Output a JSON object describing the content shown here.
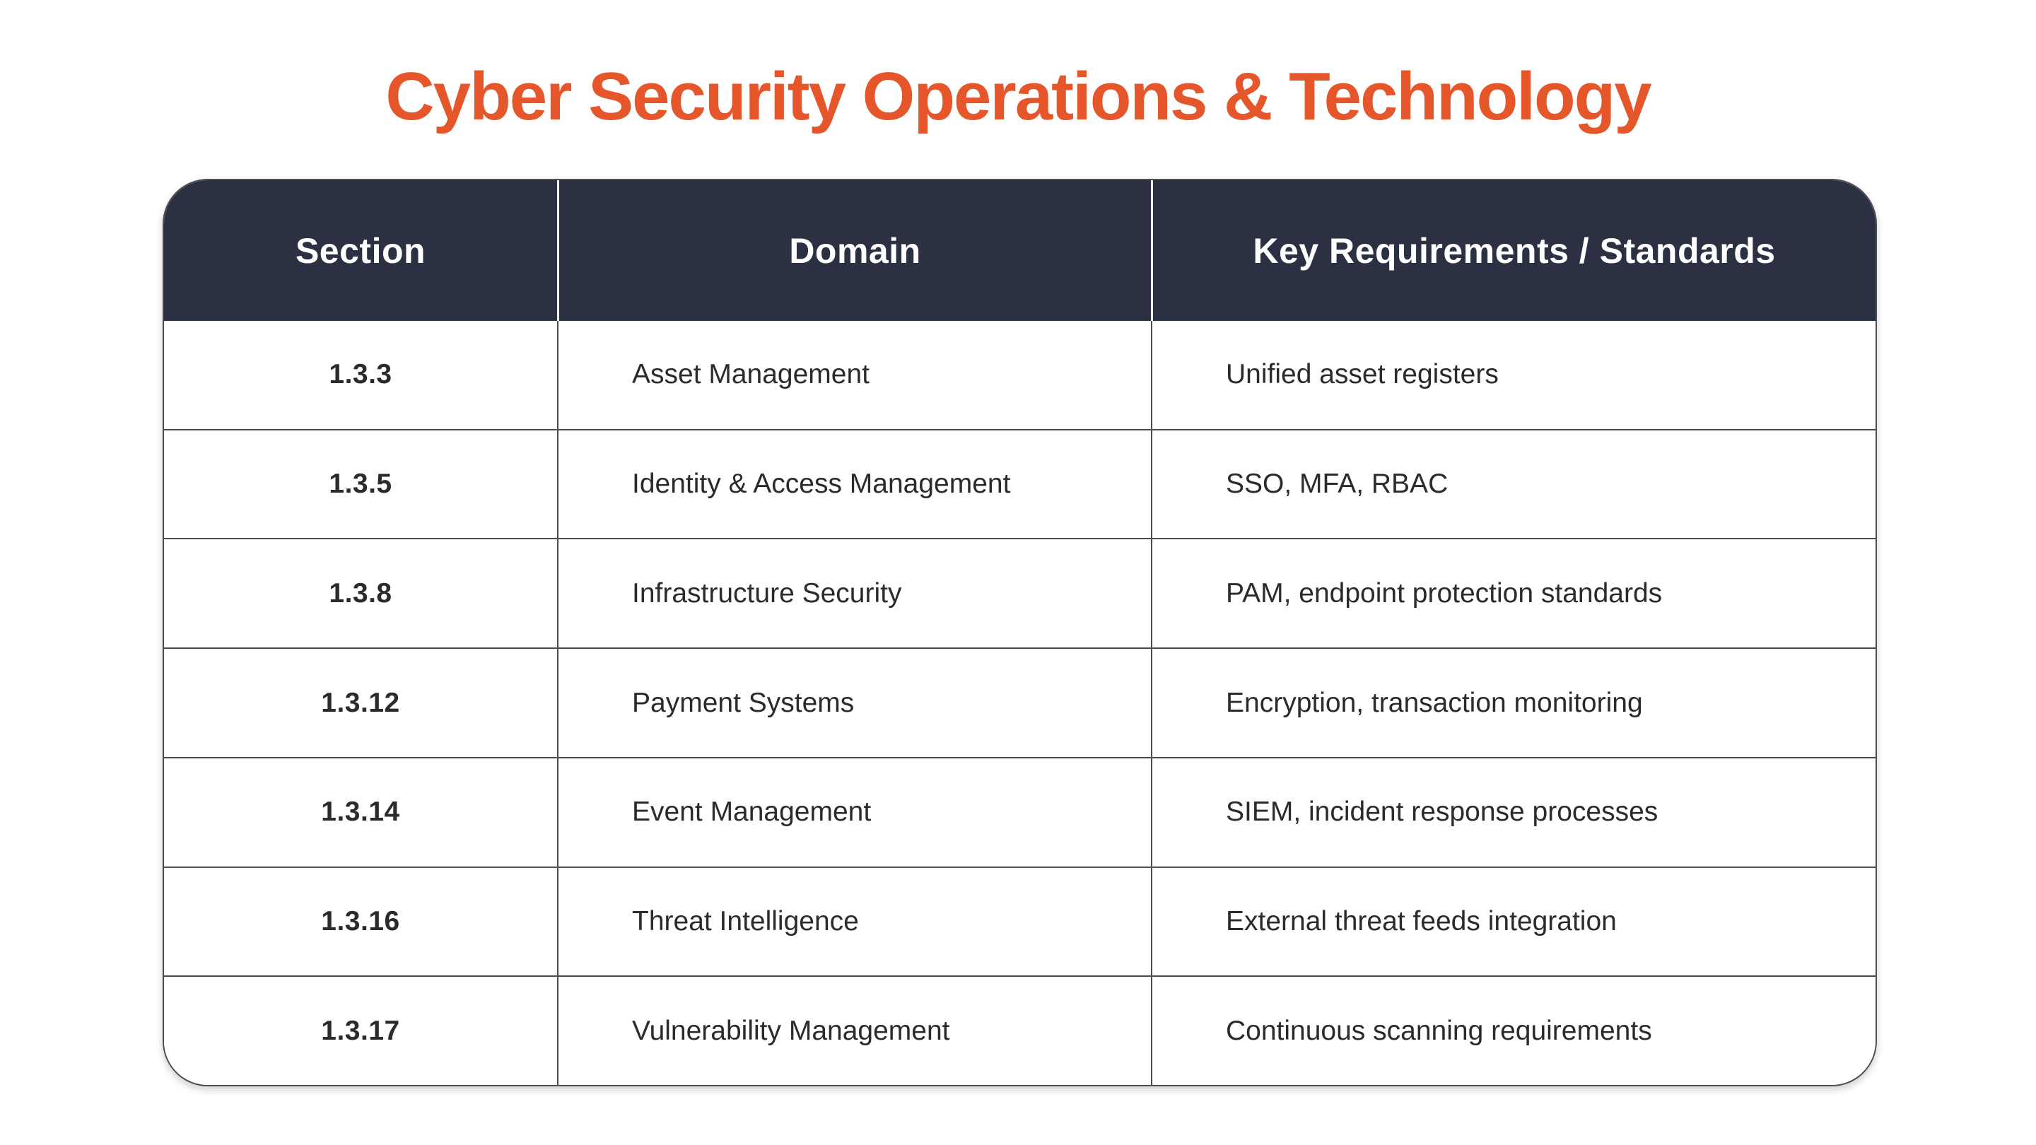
{
  "title": "Cyber Security Operations & Technology",
  "colors": {
    "accent_orange": "#E5562B",
    "header_navy": "#2B3042",
    "grid_line": "#4d4d50",
    "body_text": "#2b2b2f"
  },
  "table": {
    "columns": [
      "Section",
      "Domain",
      "Key Requirements / Standards"
    ],
    "rows": [
      {
        "section": "1.3.3",
        "domain": "Asset Management",
        "requirements": "Unified asset registers"
      },
      {
        "section": "1.3.5",
        "domain": "Identity & Access Management",
        "requirements": "SSO, MFA, RBAC"
      },
      {
        "section": "1.3.8",
        "domain": "Infrastructure Security",
        "requirements": "PAM, endpoint protection standards"
      },
      {
        "section": "1.3.12",
        "domain": "Payment Systems",
        "requirements": "Encryption, transaction monitoring"
      },
      {
        "section": "1.3.14",
        "domain": "Event Management",
        "requirements": "SIEM, incident response processes"
      },
      {
        "section": "1.3.16",
        "domain": "Threat Intelligence",
        "requirements": "External threat feeds integration"
      },
      {
        "section": "1.3.17",
        "domain": "Vulnerability Management",
        "requirements": "Continuous scanning requirements"
      }
    ]
  }
}
